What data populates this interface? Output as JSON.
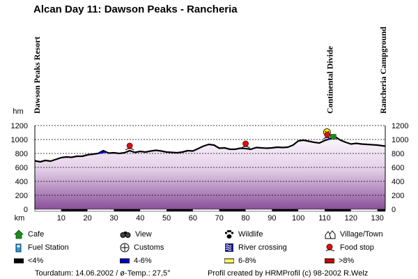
{
  "title": "Alcan Day 11: Dawson Peaks - Rancheria",
  "chart_data": {
    "type": "area",
    "title": "Alcan Day 11: Dawson Peaks - Rancheria",
    "xlabel": "km",
    "ylabel": "hm",
    "xlim": [
      0,
      133
    ],
    "ylim": [
      0,
      1200
    ],
    "xticks": [
      10,
      20,
      30,
      40,
      50,
      60,
      70,
      80,
      90,
      100,
      110,
      120,
      130
    ],
    "yticks": [
      0,
      200,
      400,
      600,
      800,
      1000,
      1200
    ],
    "grid": true,
    "places": [
      {
        "label": "Dawson Peaks Resort",
        "km": 0
      },
      {
        "label": "Continental Divide",
        "km": 112
      },
      {
        "label": "Rancheria Campground",
        "km": 133
      }
    ],
    "profile": {
      "x": [
        0,
        2,
        4,
        6,
        8,
        10,
        12,
        14,
        16,
        18,
        20,
        22,
        24,
        26,
        28,
        30,
        32,
        34,
        36,
        38,
        40,
        42,
        44,
        46,
        48,
        50,
        52,
        54,
        56,
        58,
        60,
        62,
        64,
        66,
        68,
        70,
        72,
        74,
        76,
        78,
        80,
        82,
        84,
        86,
        88,
        90,
        92,
        94,
        96,
        98,
        100,
        102,
        104,
        106,
        108,
        110,
        112,
        114,
        116,
        118,
        120,
        122,
        124,
        126,
        128,
        130,
        133
      ],
      "y": [
        695,
        680,
        700,
        690,
        715,
        740,
        750,
        745,
        760,
        760,
        780,
        790,
        800,
        840,
        805,
        810,
        800,
        810,
        840,
        815,
        830,
        820,
        835,
        845,
        835,
        820,
        815,
        810,
        820,
        840,
        835,
        870,
        905,
        930,
        920,
        875,
        880,
        860,
        860,
        875,
        870,
        860,
        885,
        880,
        875,
        880,
        890,
        885,
        890,
        920,
        980,
        990,
        975,
        960,
        950,
        985,
        1010,
        1040,
        990,
        960,
        935,
        945,
        935,
        930,
        925,
        920,
        905
      ]
    },
    "gradient_segments": [
      {
        "from_km": 24,
        "to_km": 27,
        "class": "4-6%"
      },
      {
        "from_km": 111,
        "to_km": 113,
        "class": "4-6%"
      }
    ],
    "markers": [
      {
        "type": "food-stop",
        "km": 36
      },
      {
        "type": "food-stop",
        "km": 80
      },
      {
        "type": "view",
        "km": 113
      },
      {
        "type": "cafe",
        "km": 113
      },
      {
        "type": "food-stop",
        "km": 111
      }
    ]
  },
  "legend": [
    {
      "icon": "cafe-icon",
      "label": "Cafe"
    },
    {
      "icon": "view-icon",
      "label": "View"
    },
    {
      "icon": "wildlife-icon",
      "label": "Wildlife"
    },
    {
      "icon": "village-icon",
      "label": "Village/Town"
    },
    {
      "icon": "fuel-station-icon",
      "label": "Fuel Station"
    },
    {
      "icon": "customs-icon",
      "label": "Customs"
    },
    {
      "icon": "river-crossing-icon",
      "label": "River crossing"
    },
    {
      "icon": "food-stop-icon",
      "label": "Food stop"
    },
    {
      "icon": "grade-lt4-swatch",
      "label": "<4%",
      "color": "#000000"
    },
    {
      "icon": "grade-4-6-swatch",
      "label": "4-6%",
      "color": "#0000cc"
    },
    {
      "icon": "grade-6-8-swatch",
      "label": "6-8%",
      "color": "#ffff66"
    },
    {
      "icon": "grade-gt8-swatch",
      "label": ">8%",
      "color": "#cc0000"
    }
  ],
  "footer": {
    "tour": "Tourdatum: 14.06.2002  /  ø-Temp.: 27,5°",
    "credit": "Profil created by HRMProfil (c) 98-2002 R.Welz"
  },
  "colors": {
    "fill_top": "#ffffff",
    "fill_bottom": "#8a4f9a",
    "line": "#000000",
    "grid": "#000000"
  }
}
